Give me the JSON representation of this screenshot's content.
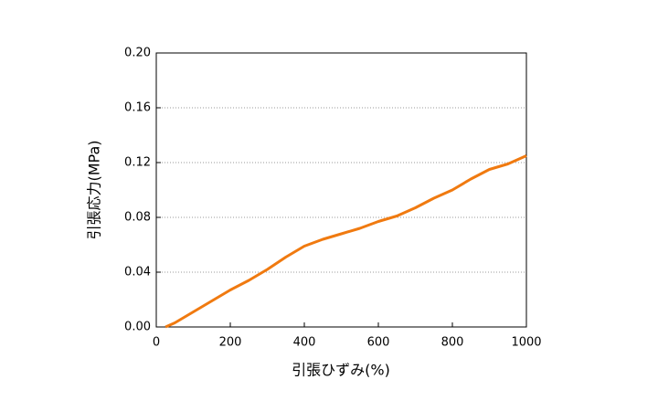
{
  "chart_data": {
    "type": "line",
    "xlabel": "引張ひずみ(%)",
    "ylabel": "引張応力(MPa)",
    "x": [
      25,
      50,
      100,
      150,
      200,
      250,
      300,
      350,
      400,
      450,
      500,
      550,
      600,
      650,
      700,
      750,
      800,
      850,
      900,
      950,
      1000
    ],
    "values": [
      0,
      0.003,
      0.011,
      0.019,
      0.027,
      0.034,
      0.042,
      0.051,
      0.059,
      0.064,
      0.068,
      0.072,
      0.077,
      0.081,
      0.087,
      0.094,
      0.1,
      0.108,
      0.115,
      0.119,
      0.125
    ],
    "color": "#f07a10",
    "xlim": [
      0,
      1000
    ],
    "xticks": [
      0,
      200,
      400,
      600,
      800,
      1000
    ],
    "ylim": [
      0,
      0.2
    ],
    "yticks": [
      {
        "value": 0,
        "label": "0.00"
      },
      {
        "value": 0.04,
        "label": "0.04"
      },
      {
        "value": 0.08,
        "label": "0.08"
      },
      {
        "value": 0.12,
        "label": "0.12"
      },
      {
        "value": 0.16,
        "label": "0.16"
      },
      {
        "value": 0.2,
        "label": "0.20"
      }
    ],
    "grid": true
  }
}
